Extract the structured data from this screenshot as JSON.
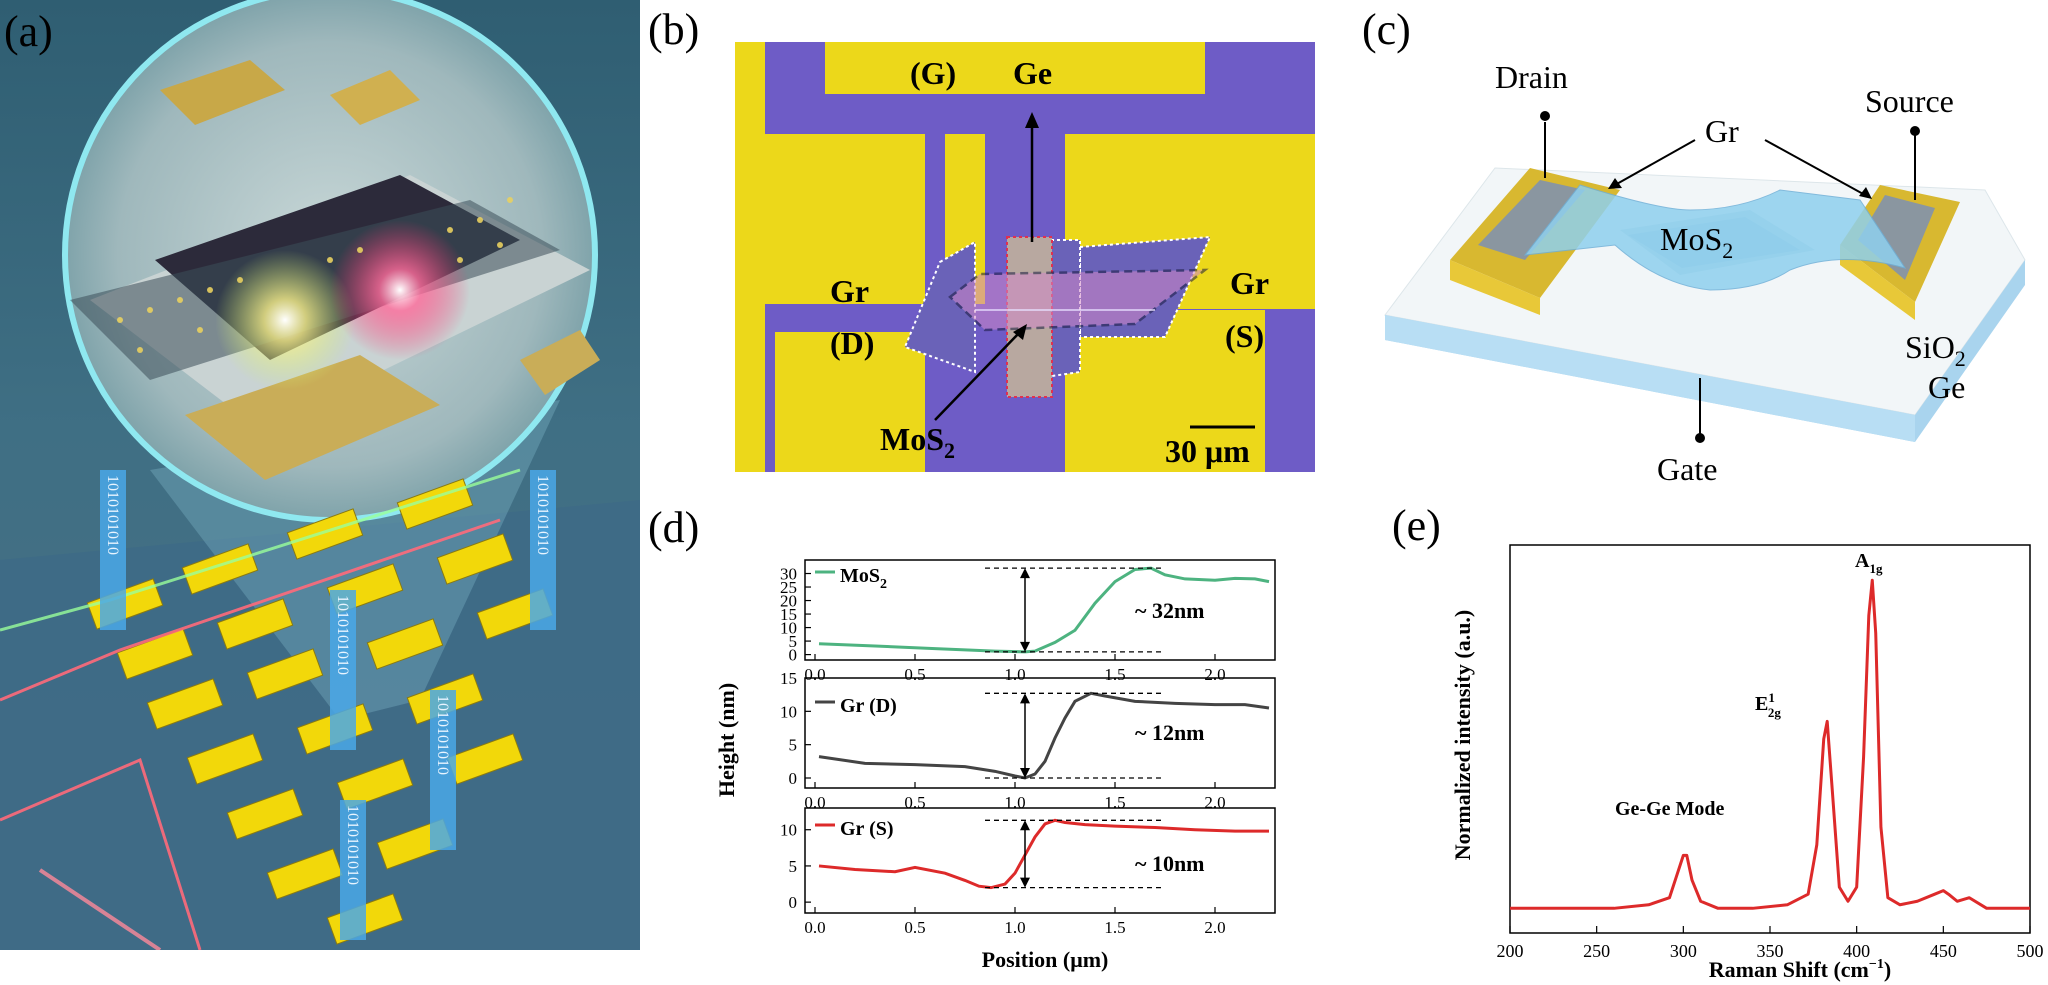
{
  "panels": {
    "a": {
      "label": "(a)",
      "binary": [
        "1010101010",
        "1010101010",
        "1010101010",
        "1010101010",
        "1010101010"
      ]
    },
    "b": {
      "label": "(b)",
      "G": "(G)",
      "Ge": "Ge",
      "GrD_1": "Gr",
      "GrD_2": "(D)",
      "GrS_1": "Gr",
      "GrS_2": "(S)",
      "MoS": "MoS",
      "MoS_sub": "2",
      "scale": "30 μm"
    },
    "c": {
      "label": "(c)",
      "drain": "Drain",
      "source": "Source",
      "gr": "Gr",
      "mos": "MoS",
      "mos_sub": "2",
      "sio": "SiO",
      "sio_sub": "2",
      "ge": "Ge",
      "gate": "Gate"
    },
    "d": {
      "label": "(d)",
      "ylabel": "Height (nm)",
      "xlabel": "Position (μm)",
      "s1_name": "MoS",
      "s1_sub": "2",
      "s1_annot": "~ 32nm",
      "s2_name": "Gr (D)",
      "s2_annot": "~ 12nm",
      "s3_name": "Gr (S)",
      "s3_annot": "~ 10nm"
    },
    "e": {
      "label": "(e)",
      "ylabel": "Normalized intensity (a.u.)",
      "xlabel_main": "Raman Shift (cm",
      "xlabel_sup": "−1",
      "xlabel_end": ")",
      "peak_gege": "Ge-Ge Mode",
      "peak_e_main": "E",
      "peak_e_sup": "1",
      "peak_e_sub": "2g",
      "peak_a_main": "A",
      "peak_a_sub": "1g"
    }
  },
  "chart_data": [
    {
      "type": "line",
      "panel": "d-top",
      "series": [
        {
          "name": "MoS2",
          "color": "#4db380",
          "x": [
            0.02,
            0.3,
            0.6,
            0.9,
            1.05,
            1.1,
            1.2,
            1.3,
            1.4,
            1.5,
            1.6,
            1.68,
            1.75,
            1.85,
            2.0,
            2.1,
            2.2,
            2.27
          ],
          "values": [
            4,
            3.2,
            2.2,
            1.3,
            1.0,
            1.3,
            4.5,
            9,
            19,
            27,
            31.5,
            32,
            29.5,
            28,
            27.5,
            28.2,
            28,
            27
          ]
        }
      ],
      "xlim": [
        -0.05,
        2.3
      ],
      "ylim": [
        -2,
        35
      ],
      "yticks": [
        0,
        5,
        10,
        15,
        20,
        25,
        30
      ],
      "xticks": [
        0.0,
        0.5,
        1.0,
        1.5,
        2.0
      ]
    },
    {
      "type": "line",
      "panel": "d-middle",
      "series": [
        {
          "name": "Gr (D)",
          "color": "#444444",
          "x": [
            0.02,
            0.25,
            0.5,
            0.75,
            0.9,
            1.0,
            1.05,
            1.1,
            1.15,
            1.2,
            1.25,
            1.3,
            1.38,
            1.45,
            1.6,
            1.8,
            2.0,
            2.15,
            2.27
          ],
          "values": [
            3.2,
            2.2,
            2.0,
            1.7,
            1.0,
            0.3,
            0.0,
            0.6,
            2.5,
            6,
            9,
            11.5,
            12.7,
            12.3,
            11.5,
            11.2,
            11.0,
            11.0,
            10.5
          ]
        }
      ],
      "xlim": [
        -0.05,
        2.3
      ],
      "ylim": [
        -1.5,
        15
      ],
      "yticks": [
        0,
        5,
        10,
        15
      ],
      "xticks": [
        0.0,
        0.5,
        1.0,
        1.5,
        2.0
      ]
    },
    {
      "type": "line",
      "panel": "d-bottom",
      "series": [
        {
          "name": "Gr (S)",
          "color": "#dd2a2a",
          "x": [
            0.02,
            0.2,
            0.4,
            0.5,
            0.65,
            0.75,
            0.82,
            0.88,
            0.95,
            1.0,
            1.05,
            1.1,
            1.15,
            1.2,
            1.25,
            1.35,
            1.5,
            1.7,
            1.9,
            2.1,
            2.27
          ],
          "values": [
            5,
            4.5,
            4.2,
            4.8,
            4.0,
            3.0,
            2.2,
            2.0,
            2.5,
            4.0,
            6.5,
            9,
            10.8,
            11.3,
            11.0,
            10.7,
            10.5,
            10.3,
            10.0,
            9.8,
            9.8
          ]
        }
      ],
      "xlim": [
        -0.05,
        2.3
      ],
      "ylim": [
        -1.5,
        13
      ],
      "yticks": [
        0,
        5,
        10
      ],
      "xticks": [
        0.0,
        0.5,
        1.0,
        1.5,
        2.0
      ]
    },
    {
      "type": "line",
      "panel": "e",
      "series": [
        {
          "name": "Raman",
          "color": "#dd2a2a",
          "x": [
            200,
            230,
            260,
            280,
            292,
            296,
            300,
            302,
            305,
            310,
            320,
            340,
            360,
            372,
            377,
            381,
            383,
            386,
            390,
            395,
            400,
            404,
            407,
            409,
            411,
            414,
            418,
            425,
            435,
            445,
            450,
            453,
            458,
            465,
            475,
            490,
            500
          ],
          "values": [
            0.02,
            0.02,
            0.02,
            0.03,
            0.05,
            0.11,
            0.17,
            0.17,
            0.1,
            0.04,
            0.02,
            0.02,
            0.03,
            0.06,
            0.2,
            0.5,
            0.55,
            0.35,
            0.08,
            0.04,
            0.08,
            0.45,
            0.85,
            0.95,
            0.8,
            0.25,
            0.05,
            0.03,
            0.04,
            0.06,
            0.07,
            0.06,
            0.04,
            0.05,
            0.02,
            0.02,
            0.02
          ]
        }
      ],
      "xlim": [
        200,
        500
      ],
      "ylim": [
        -0.05,
        1.05
      ],
      "xticks": [
        200,
        250,
        300,
        350,
        400,
        450,
        500
      ]
    }
  ]
}
